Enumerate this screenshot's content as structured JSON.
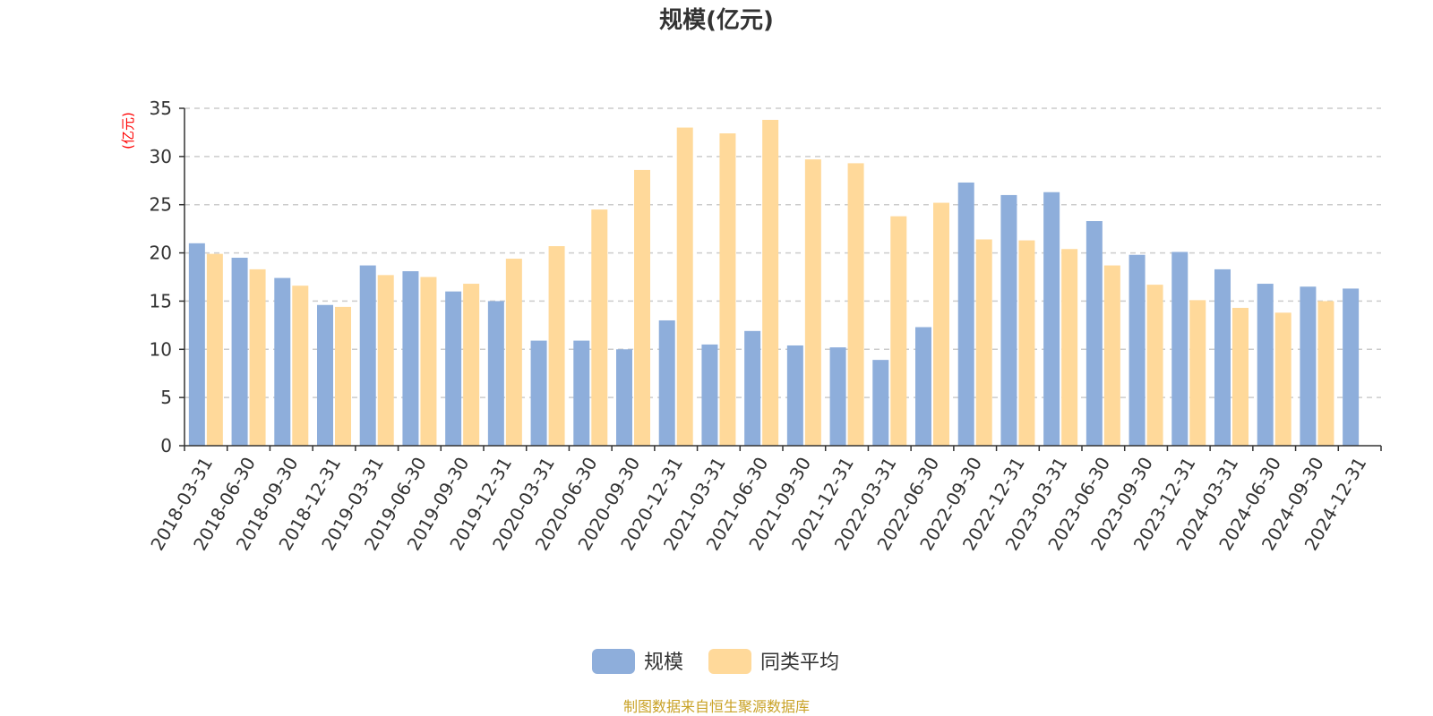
{
  "chart_data": {
    "type": "bar",
    "title": "规模(亿元)",
    "ylabel": "(亿元)",
    "xlabel": "",
    "ylim": [
      0,
      35
    ],
    "yticks": [
      0,
      5,
      10,
      15,
      20,
      25,
      30,
      35
    ],
    "grid": true,
    "legend_position": "bottom-center",
    "categories": [
      "2018-03-31",
      "2018-06-30",
      "2018-09-30",
      "2018-12-31",
      "2019-03-31",
      "2019-06-30",
      "2019-09-30",
      "2019-12-31",
      "2020-03-31",
      "2020-06-30",
      "2020-09-30",
      "2020-12-31",
      "2021-03-31",
      "2021-06-30",
      "2021-09-30",
      "2021-12-31",
      "2022-03-31",
      "2022-06-30",
      "2022-09-30",
      "2022-12-31",
      "2023-03-31",
      "2023-06-30",
      "2023-09-30",
      "2023-12-31",
      "2024-03-31",
      "2024-06-30",
      "2024-09-30",
      "2024-12-31"
    ],
    "series": [
      {
        "name": "规模",
        "color": "#8eaedb",
        "values": [
          21.0,
          19.5,
          17.4,
          14.6,
          18.7,
          18.1,
          16.0,
          15.0,
          10.9,
          10.9,
          10.0,
          13.0,
          10.5,
          11.9,
          10.4,
          10.2,
          8.9,
          12.3,
          27.3,
          26.0,
          26.3,
          23.3,
          19.8,
          20.1,
          18.3,
          16.8,
          16.5,
          16.3
        ]
      },
      {
        "name": "同类平均",
        "color": "#ffd99a",
        "values": [
          19.9,
          18.3,
          16.6,
          14.4,
          17.7,
          17.5,
          16.8,
          19.4,
          20.7,
          24.5,
          28.6,
          33.0,
          32.4,
          33.8,
          29.7,
          29.3,
          23.8,
          25.2,
          21.4,
          21.3,
          20.4,
          18.7,
          16.7,
          15.1,
          14.3,
          13.8,
          15.0,
          null
        ]
      }
    ]
  },
  "footer": {
    "source": "制图数据来自恒生聚源数据库"
  }
}
